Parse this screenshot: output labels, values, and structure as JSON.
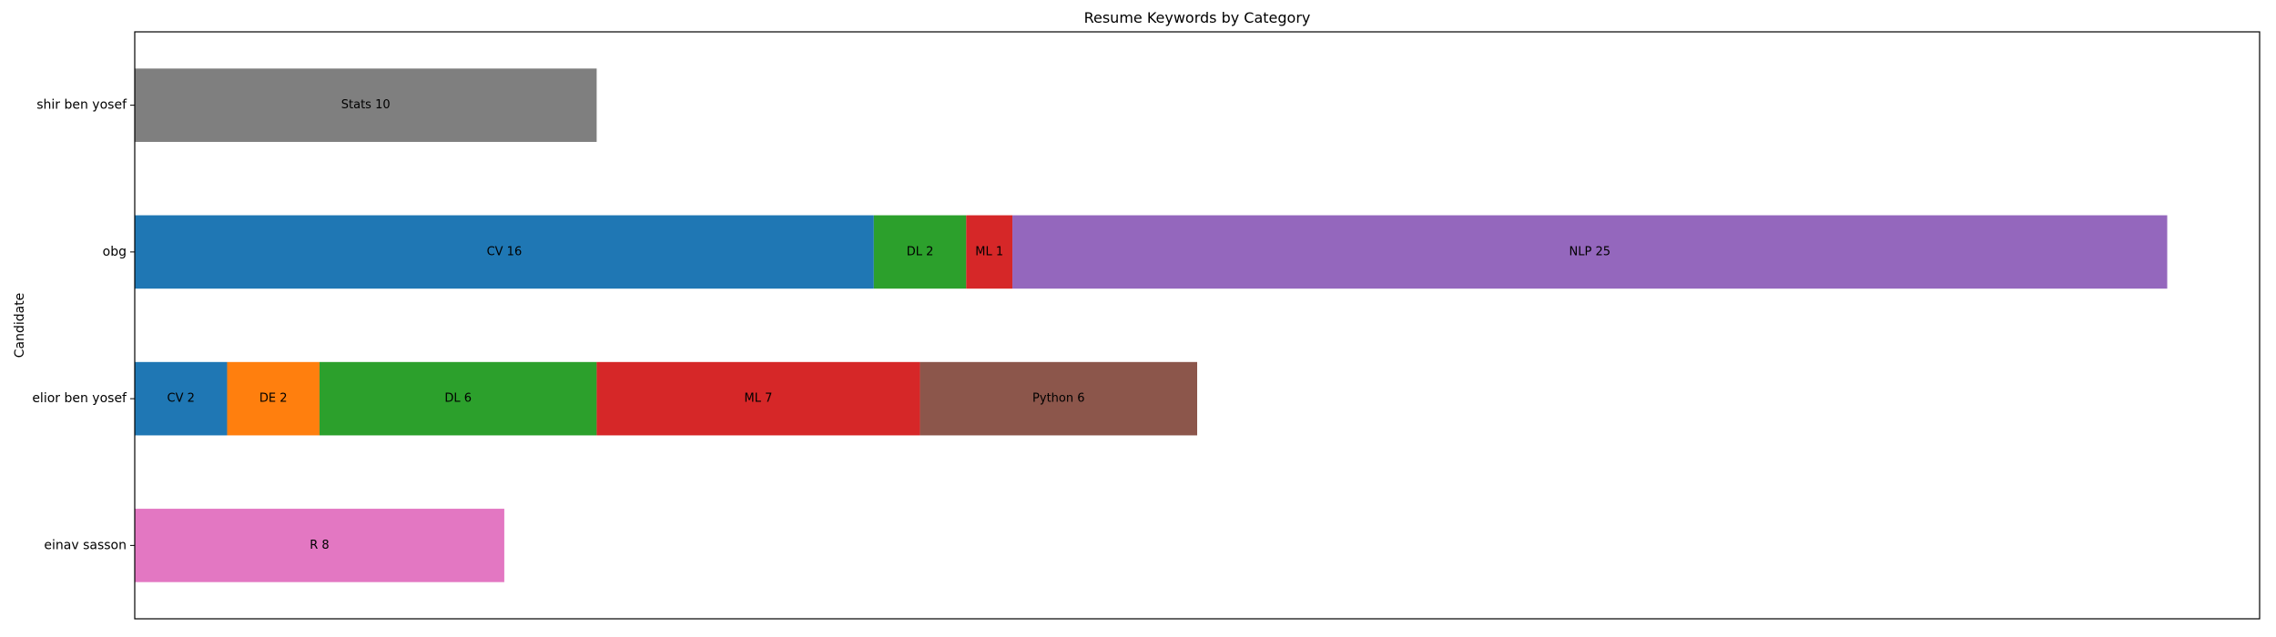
{
  "chart_data": {
    "type": "bar",
    "orientation": "horizontal",
    "stacked": true,
    "title": "Resume Keywords by Category",
    "xlabel": "",
    "ylabel": "Candidate",
    "xlim": [
      0,
      46
    ],
    "grid": false,
    "legend": "none",
    "categories": [
      "einav sasson",
      "elior ben yosef",
      "obg",
      "shir ben yosef"
    ],
    "series": [
      {
        "name": "CV",
        "color": "#1f77b4",
        "values": [
          0,
          2,
          16,
          0
        ]
      },
      {
        "name": "DE",
        "color": "#ff7f0e",
        "values": [
          0,
          2,
          0,
          0
        ]
      },
      {
        "name": "DL",
        "color": "#2ca02c",
        "values": [
          0,
          6,
          2,
          0
        ]
      },
      {
        "name": "ML",
        "color": "#d62728",
        "values": [
          0,
          7,
          1,
          0
        ]
      },
      {
        "name": "NLP",
        "color": "#9467bd",
        "values": [
          0,
          0,
          25,
          0
        ]
      },
      {
        "name": "Python",
        "color": "#8c564b",
        "values": [
          0,
          6,
          0,
          0
        ]
      },
      {
        "name": "R",
        "color": "#e377c2",
        "values": [
          8,
          0,
          0,
          0
        ]
      },
      {
        "name": "Stats",
        "color": "#7f7f7f",
        "values": [
          0,
          0,
          0,
          10
        ]
      }
    ]
  }
}
